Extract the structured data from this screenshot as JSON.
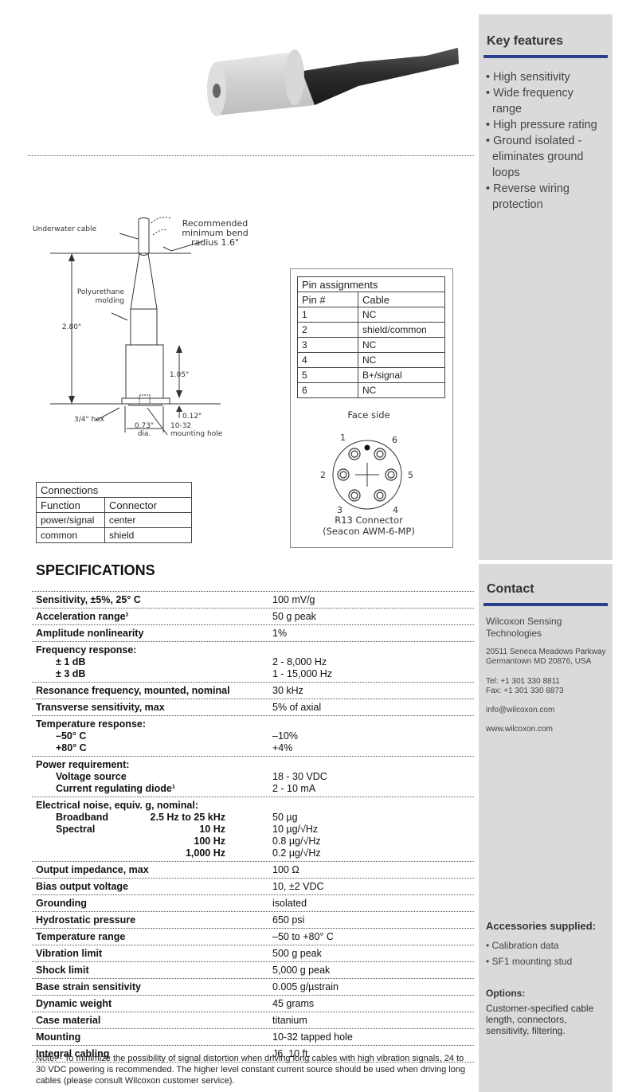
{
  "sidebar": {
    "key_features_title": "Key features",
    "key_features": [
      "• High sensitivity",
      "• Wide frequency range",
      "• High pressure rating",
      "• Ground isolated - eliminates ground loops",
      "• Reverse wiring protection"
    ],
    "contact_title": "Contact",
    "company": "Wilcoxon Sensing\nTechnologies",
    "address": "20511 Seneca Meadows Parkway\nGermantown MD 20876, USA",
    "phone": "Tel: +1 301 330 8811\nFax: +1 301 330 8873",
    "email": "info@wilcoxon.com",
    "website": "www.wilcoxon.com",
    "accessories_title": "Accessories supplied:",
    "accessories": [
      "• Calibration data",
      "• SF1 mounting stud"
    ],
    "options_title": "Options:",
    "options_text": "Customer-specified cable length, connectors, sensitivity, filtering.",
    "accent_color": "#2b3f8f"
  },
  "drawing": {
    "cable_label": "Underwater cable",
    "bend_label_1": "Recommended",
    "bend_label_2": "minimum bend",
    "bend_label_3": "radius 1.6\"",
    "molding_label_1": "Polyurethane",
    "molding_label_2": "molding",
    "length_total": "2.80\"",
    "length_body": "1.05\"",
    "length_base": "0.12\"",
    "hex_label": "3/4\" hex",
    "dia_label_1": "0.73\"",
    "dia_label_2": "dia.",
    "hole_label_1": "10-32",
    "hole_label_2": "mounting hole"
  },
  "pin_table": {
    "title": "Pin assignments",
    "headers": [
      "Pin #",
      "Cable"
    ],
    "rows": [
      [
        "1",
        "NC"
      ],
      [
        "2",
        "shield/common"
      ],
      [
        "3",
        "NC"
      ],
      [
        "4",
        "NC"
      ],
      [
        "5",
        "B+/signal"
      ],
      [
        "6",
        "NC"
      ]
    ]
  },
  "connector": {
    "face_label": "Face side",
    "pins": [
      "1",
      "2",
      "3",
      "4",
      "5",
      "6"
    ],
    "name": "R13 Connector",
    "model": "(Seacon AWM-6-MP)"
  },
  "connections_table": {
    "title": "Connections",
    "headers": [
      "Function",
      "Connector"
    ],
    "rows": [
      [
        "power/signal",
        "center"
      ],
      [
        "common",
        "shield"
      ]
    ]
  },
  "specs_title": "SPECIFICATIONS",
  "specs": [
    {
      "lines": [
        [
          "Sensitivity, ±5%, 25° C",
          "",
          "100 mV/g"
        ]
      ]
    },
    {
      "lines": [
        [
          "Acceleration range¹",
          "",
          "50 g peak"
        ]
      ]
    },
    {
      "lines": [
        [
          "Amplitude nonlinearity",
          "",
          "1%"
        ]
      ]
    },
    {
      "lines": [
        [
          "Frequency response:",
          "",
          ""
        ],
        [
          "± 1 dB",
          "",
          "2 - 8,000 Hz"
        ],
        [
          "± 3 dB",
          "",
          "1 - 15,000 Hz"
        ]
      ]
    },
    {
      "lines": [
        [
          "Resonance frequency, mounted, nominal",
          "",
          "30 kHz"
        ]
      ]
    },
    {
      "lines": [
        [
          "Transverse sensitivity, max",
          "",
          "5% of axial"
        ]
      ]
    },
    {
      "lines": [
        [
          "Temperature response:",
          "",
          ""
        ],
        [
          "–50° C",
          "",
          "–10%"
        ],
        [
          "+80° C",
          "",
          "+4%"
        ]
      ]
    },
    {
      "lines": [
        [
          "Power requirement:",
          "",
          ""
        ],
        [
          "Voltage source",
          "",
          "18 - 30 VDC"
        ],
        [
          "Current regulating diode¹",
          "",
          "2 - 10 mA"
        ]
      ]
    },
    {
      "lines": [
        [
          "Electrical noise, equiv. g, nominal:",
          "",
          ""
        ],
        [
          "Broadband",
          "2.5 Hz to 25 kHz",
          "50 µg"
        ],
        [
          "Spectral",
          "10 Hz",
          "10 µg/√Hz"
        ],
        [
          "",
          "100 Hz",
          "0.8 µg/√Hz"
        ],
        [
          "",
          "1,000 Hz",
          "0.2 µg/√Hz"
        ]
      ]
    },
    {
      "lines": [
        [
          "Output impedance, max",
          "",
          "100 Ω"
        ]
      ]
    },
    {
      "lines": [
        [
          "Bias output voltage",
          "",
          "10, ±2 VDC"
        ]
      ]
    },
    {
      "lines": [
        [
          "Grounding",
          "",
          "isolated"
        ]
      ]
    },
    {
      "lines": [
        [
          "Hydrostatic pressure",
          "",
          "650 psi"
        ]
      ]
    },
    {
      "lines": [
        [
          "Temperature range",
          "",
          "–50 to +80° C"
        ]
      ]
    },
    {
      "lines": [
        [
          "Vibration limit",
          "",
          "500 g peak"
        ]
      ]
    },
    {
      "lines": [
        [
          "Shock limit",
          "",
          "5,000 g peak"
        ]
      ]
    },
    {
      "lines": [
        [
          "Base strain sensitivity",
          "",
          "0.005 g/µstrain"
        ]
      ]
    },
    {
      "lines": [
        [
          "Dynamic weight",
          "",
          "45 grams"
        ]
      ]
    },
    {
      "lines": [
        [
          "Case material",
          "",
          "titanium"
        ]
      ]
    },
    {
      "lines": [
        [
          "Mounting",
          "",
          "10-32 tapped hole"
        ]
      ]
    },
    {
      "lines": [
        [
          "Integral cabling",
          "",
          "J6, 10 ft."
        ]
      ]
    }
  ],
  "note": "Note: ¹ To minimize the possibility of signal distortion when driving long cables with high vibration signals, 24 to 30 VDC powering is recommended. The higher level constant current source should be used when driving long cables (please consult Wilcoxon customer service)."
}
